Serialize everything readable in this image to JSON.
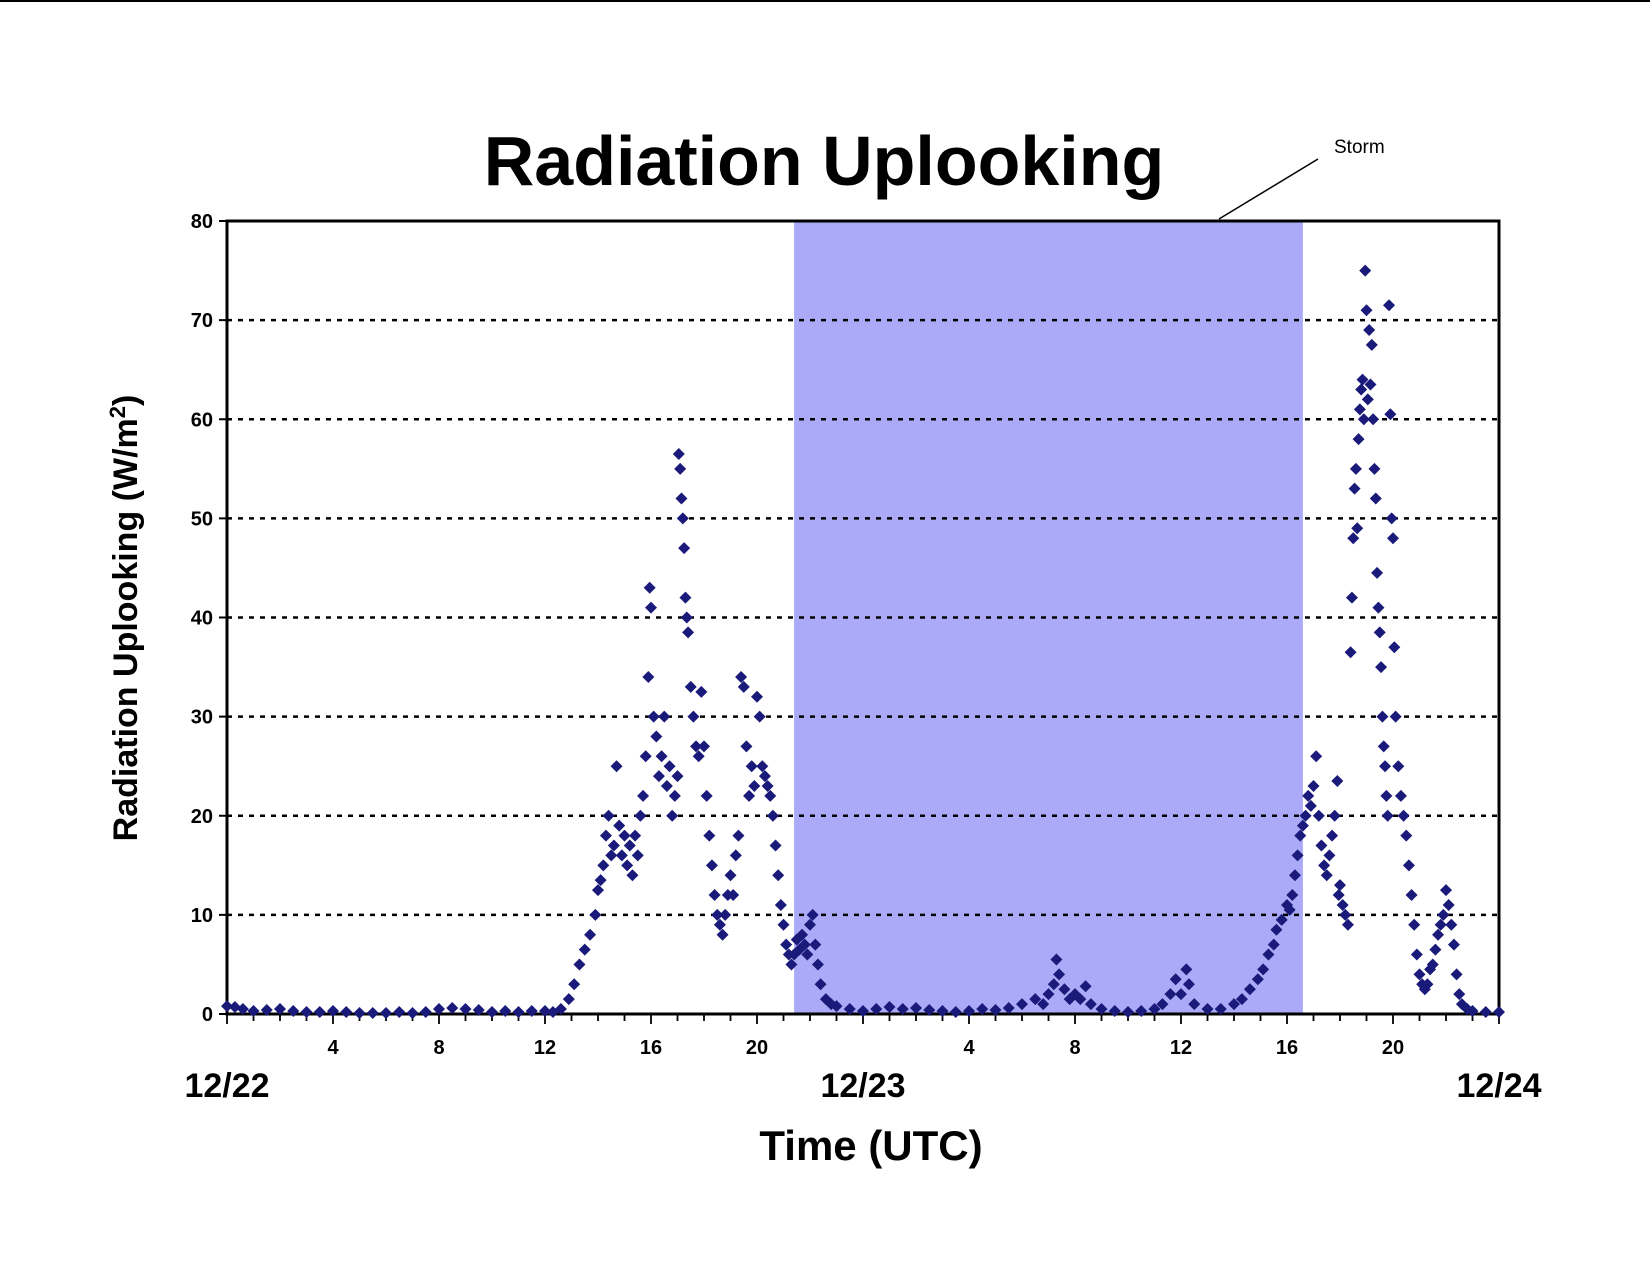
{
  "chart_data": {
    "type": "scatter",
    "title": "Radiation Uplooking",
    "xlabel": "Time (UTC)",
    "ylabel_main": "Radiation Uplooking (W/m",
    "ylabel_sup": "2",
    "ylabel_close": ")",
    "ylim": [
      0,
      80
    ],
    "yticks": [
      0,
      10,
      20,
      30,
      40,
      50,
      60,
      70,
      80
    ],
    "xlim_hours": [
      0,
      48
    ],
    "xticks_hours": [
      4,
      8,
      12,
      16,
      20,
      28,
      32,
      36,
      40,
      44
    ],
    "xtick_labels": [
      "4",
      "8",
      "12",
      "16",
      "20",
      "4",
      "8",
      "12",
      "16",
      "20"
    ],
    "date_labels": [
      {
        "label": "12/22",
        "hour": 0
      },
      {
        "label": "12/23",
        "hour": 24
      },
      {
        "label": "12/24",
        "hour": 48
      }
    ],
    "grid": "horizontal dotted",
    "annotation": {
      "label": "Storm",
      "span_hours": [
        21.4,
        40.6
      ]
    },
    "series": [
      {
        "color": "#1a1a7a",
        "marker": "diamond",
        "points": [
          [
            0.0,
            0.8
          ],
          [
            0.3,
            0.7
          ],
          [
            0.6,
            0.5
          ],
          [
            1.0,
            0.3
          ],
          [
            1.5,
            0.4
          ],
          [
            2.0,
            0.5
          ],
          [
            2.5,
            0.3
          ],
          [
            3.0,
            0.2
          ],
          [
            3.5,
            0.2
          ],
          [
            4.0,
            0.3
          ],
          [
            4.5,
            0.2
          ],
          [
            5.0,
            0.1
          ],
          [
            5.5,
            0.1
          ],
          [
            6.0,
            0.1
          ],
          [
            6.5,
            0.2
          ],
          [
            7.0,
            0.1
          ],
          [
            7.5,
            0.2
          ],
          [
            8.0,
            0.5
          ],
          [
            8.5,
            0.6
          ],
          [
            9.0,
            0.5
          ],
          [
            9.5,
            0.4
          ],
          [
            10.0,
            0.2
          ],
          [
            10.5,
            0.3
          ],
          [
            11.0,
            0.2
          ],
          [
            11.5,
            0.3
          ],
          [
            12.0,
            0.3
          ],
          [
            12.3,
            0.2
          ],
          [
            12.6,
            0.5
          ],
          [
            12.9,
            1.5
          ],
          [
            13.1,
            3.0
          ],
          [
            13.3,
            5.0
          ],
          [
            13.5,
            6.5
          ],
          [
            13.7,
            8.0
          ],
          [
            13.9,
            10.0
          ],
          [
            14.0,
            12.5
          ],
          [
            14.1,
            13.5
          ],
          [
            14.2,
            15.0
          ],
          [
            14.3,
            18.0
          ],
          [
            14.4,
            20.0
          ],
          [
            14.5,
            16.0
          ],
          [
            14.6,
            17.0
          ],
          [
            14.7,
            25.0
          ],
          [
            14.8,
            19.0
          ],
          [
            14.9,
            16.0
          ],
          [
            15.0,
            18.0
          ],
          [
            15.1,
            15.0
          ],
          [
            15.2,
            17.0
          ],
          [
            15.3,
            14.0
          ],
          [
            15.4,
            18.0
          ],
          [
            15.5,
            16.0
          ],
          [
            15.6,
            20.0
          ],
          [
            15.7,
            22.0
          ],
          [
            15.8,
            26.0
          ],
          [
            15.9,
            34.0
          ],
          [
            15.95,
            43.0
          ],
          [
            16.0,
            41.0
          ],
          [
            16.1,
            30.0
          ],
          [
            16.2,
            28.0
          ],
          [
            16.3,
            24.0
          ],
          [
            16.4,
            26.0
          ],
          [
            16.5,
            30.0
          ],
          [
            16.6,
            23.0
          ],
          [
            16.7,
            25.0
          ],
          [
            16.8,
            20.0
          ],
          [
            16.9,
            22.0
          ],
          [
            17.0,
            24.0
          ],
          [
            17.05,
            56.5
          ],
          [
            17.1,
            55.0
          ],
          [
            17.15,
            52.0
          ],
          [
            17.2,
            50.0
          ],
          [
            17.25,
            47.0
          ],
          [
            17.3,
            42.0
          ],
          [
            17.35,
            40.0
          ],
          [
            17.4,
            38.5
          ],
          [
            17.5,
            33.0
          ],
          [
            17.6,
            30.0
          ],
          [
            17.7,
            27.0
          ],
          [
            17.8,
            26.0
          ],
          [
            17.9,
            32.5
          ],
          [
            18.0,
            27.0
          ],
          [
            18.1,
            22.0
          ],
          [
            18.2,
            18.0
          ],
          [
            18.3,
            15.0
          ],
          [
            18.4,
            12.0
          ],
          [
            18.5,
            10.0
          ],
          [
            18.6,
            9.0
          ],
          [
            18.7,
            8.0
          ],
          [
            18.8,
            10.0
          ],
          [
            18.9,
            12.0
          ],
          [
            19.0,
            14.0
          ],
          [
            19.1,
            12.0
          ],
          [
            19.2,
            16.0
          ],
          [
            19.3,
            18.0
          ],
          [
            19.4,
            34.0
          ],
          [
            19.5,
            33.0
          ],
          [
            19.6,
            27.0
          ],
          [
            19.7,
            22.0
          ],
          [
            19.8,
            25.0
          ],
          [
            19.9,
            23.0
          ],
          [
            20.0,
            32.0
          ],
          [
            20.1,
            30.0
          ],
          [
            20.2,
            25.0
          ],
          [
            20.3,
            24.0
          ],
          [
            20.4,
            23.0
          ],
          [
            20.5,
            22.0
          ],
          [
            20.6,
            20.0
          ],
          [
            20.7,
            17.0
          ],
          [
            20.8,
            14.0
          ],
          [
            20.9,
            11.0
          ],
          [
            21.0,
            9.0
          ],
          [
            21.1,
            7.0
          ],
          [
            21.2,
            6.0
          ],
          [
            21.3,
            5.0
          ],
          [
            21.4,
            6.0
          ],
          [
            21.5,
            7.5
          ],
          [
            21.6,
            6.5
          ],
          [
            21.7,
            8.0
          ],
          [
            21.8,
            7.0
          ],
          [
            21.9,
            6.0
          ],
          [
            22.0,
            9.0
          ],
          [
            22.1,
            10.0
          ],
          [
            22.2,
            7.0
          ],
          [
            22.3,
            5.0
          ],
          [
            22.4,
            3.0
          ],
          [
            22.6,
            1.5
          ],
          [
            22.8,
            1.0
          ],
          [
            23.0,
            0.8
          ],
          [
            23.5,
            0.5
          ],
          [
            24.0,
            0.3
          ],
          [
            24.5,
            0.5
          ],
          [
            25.0,
            0.7
          ],
          [
            25.5,
            0.5
          ],
          [
            26.0,
            0.6
          ],
          [
            26.5,
            0.4
          ],
          [
            27.0,
            0.3
          ],
          [
            27.5,
            0.2
          ],
          [
            28.0,
            0.3
          ],
          [
            28.5,
            0.5
          ],
          [
            29.0,
            0.4
          ],
          [
            29.5,
            0.6
          ],
          [
            30.0,
            1.0
          ],
          [
            30.5,
            1.5
          ],
          [
            30.8,
            1.0
          ],
          [
            31.0,
            2.0
          ],
          [
            31.2,
            3.0
          ],
          [
            31.3,
            5.5
          ],
          [
            31.4,
            4.0
          ],
          [
            31.6,
            2.5
          ],
          [
            31.8,
            1.5
          ],
          [
            32.0,
            2.0
          ],
          [
            32.2,
            1.5
          ],
          [
            32.4,
            2.8
          ],
          [
            32.6,
            1.0
          ],
          [
            33.0,
            0.5
          ],
          [
            33.5,
            0.3
          ],
          [
            34.0,
            0.2
          ],
          [
            34.5,
            0.3
          ],
          [
            35.0,
            0.5
          ],
          [
            35.3,
            1.0
          ],
          [
            35.6,
            2.0
          ],
          [
            35.8,
            3.5
          ],
          [
            36.0,
            2.0
          ],
          [
            36.2,
            4.5
          ],
          [
            36.3,
            3.0
          ],
          [
            36.5,
            1.0
          ],
          [
            37.0,
            0.5
          ],
          [
            37.5,
            0.5
          ],
          [
            38.0,
            1.0
          ],
          [
            38.3,
            1.5
          ],
          [
            38.6,
            2.5
          ],
          [
            38.9,
            3.5
          ],
          [
            39.1,
            4.5
          ],
          [
            39.3,
            6.0
          ],
          [
            39.5,
            7.0
          ],
          [
            39.6,
            8.5
          ],
          [
            39.8,
            9.5
          ],
          [
            40.0,
            11.0
          ],
          [
            40.1,
            10.5
          ],
          [
            40.2,
            12.0
          ],
          [
            40.3,
            14.0
          ],
          [
            40.4,
            16.0
          ],
          [
            40.5,
            18.0
          ],
          [
            40.6,
            19.0
          ],
          [
            40.7,
            20.0
          ],
          [
            40.8,
            22.0
          ],
          [
            40.9,
            21.0
          ],
          [
            41.0,
            23.0
          ],
          [
            41.1,
            26.0
          ],
          [
            41.2,
            20.0
          ],
          [
            41.3,
            17.0
          ],
          [
            41.4,
            15.0
          ],
          [
            41.5,
            14.0
          ],
          [
            41.6,
            16.0
          ],
          [
            41.7,
            18.0
          ],
          [
            41.8,
            20.0
          ],
          [
            41.9,
            23.5
          ],
          [
            41.95,
            12.0
          ],
          [
            42.0,
            13.0
          ],
          [
            42.1,
            11.0
          ],
          [
            42.2,
            10.0
          ],
          [
            42.3,
            9.0
          ],
          [
            42.4,
            36.5
          ],
          [
            42.45,
            42.0
          ],
          [
            42.5,
            48.0
          ],
          [
            42.55,
            53.0
          ],
          [
            42.6,
            55.0
          ],
          [
            42.65,
            49.0
          ],
          [
            42.7,
            58.0
          ],
          [
            42.75,
            61.0
          ],
          [
            42.8,
            63.0
          ],
          [
            42.85,
            64.0
          ],
          [
            42.9,
            60.0
          ],
          [
            42.95,
            75.0
          ],
          [
            43.0,
            71.0
          ],
          [
            43.05,
            62.0
          ],
          [
            43.1,
            69.0
          ],
          [
            43.15,
            63.5
          ],
          [
            43.2,
            67.5
          ],
          [
            43.25,
            60.0
          ],
          [
            43.3,
            55.0
          ],
          [
            43.35,
            52.0
          ],
          [
            43.4,
            44.5
          ],
          [
            43.45,
            41.0
          ],
          [
            43.5,
            38.5
          ],
          [
            43.55,
            35.0
          ],
          [
            43.6,
            30.0
          ],
          [
            43.65,
            27.0
          ],
          [
            43.7,
            25.0
          ],
          [
            43.75,
            22.0
          ],
          [
            43.8,
            20.0
          ],
          [
            43.85,
            71.5
          ],
          [
            43.9,
            60.5
          ],
          [
            43.95,
            50.0
          ],
          [
            44.0,
            48.0
          ],
          [
            44.05,
            37.0
          ],
          [
            44.1,
            30.0
          ],
          [
            44.2,
            25.0
          ],
          [
            44.3,
            22.0
          ],
          [
            44.4,
            20.0
          ],
          [
            44.5,
            18.0
          ],
          [
            44.6,
            15.0
          ],
          [
            44.7,
            12.0
          ],
          [
            44.8,
            9.0
          ],
          [
            44.9,
            6.0
          ],
          [
            45.0,
            4.0
          ],
          [
            45.1,
            3.0
          ],
          [
            45.2,
            2.5
          ],
          [
            45.3,
            3.0
          ],
          [
            45.4,
            4.5
          ],
          [
            45.5,
            5.0
          ],
          [
            45.6,
            6.5
          ],
          [
            45.7,
            8.0
          ],
          [
            45.8,
            9.0
          ],
          [
            45.9,
            10.0
          ],
          [
            46.0,
            12.5
          ],
          [
            46.1,
            11.0
          ],
          [
            46.2,
            9.0
          ],
          [
            46.3,
            7.0
          ],
          [
            46.4,
            4.0
          ],
          [
            46.5,
            2.0
          ],
          [
            46.6,
            1.0
          ],
          [
            46.8,
            0.5
          ],
          [
            47.0,
            0.3
          ],
          [
            47.5,
            0.2
          ],
          [
            48.0,
            0.2
          ]
        ]
      }
    ]
  }
}
